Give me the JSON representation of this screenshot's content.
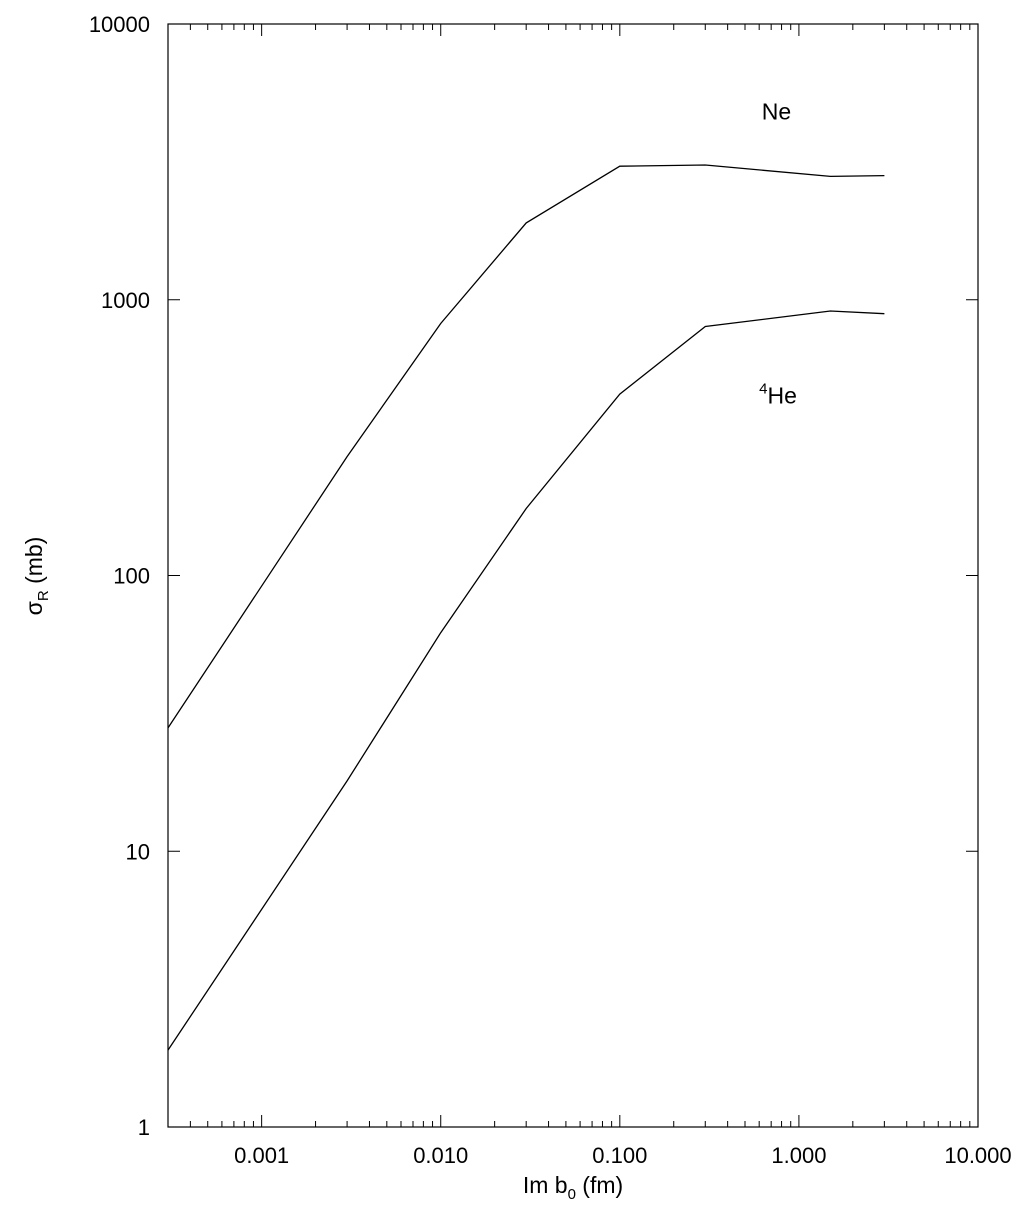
{
  "chart_data": {
    "type": "line",
    "x_scale": "log",
    "y_scale": "log",
    "xlim": [
      0.0003,
      10
    ],
    "ylim": [
      1,
      10000
    ],
    "xlabel": {
      "main": "Im b",
      "sub": "0",
      "unit": " (fm)"
    },
    "ylabel": {
      "main": "σ",
      "sub": "R",
      "unit": " (mb)"
    },
    "x_ticks": [
      {
        "value": 0.001,
        "label": "0.001"
      },
      {
        "value": 0.01,
        "label": "0.010"
      },
      {
        "value": 0.1,
        "label": "0.100"
      },
      {
        "value": 1,
        "label": "1.000"
      },
      {
        "value": 10,
        "label": "10.000"
      }
    ],
    "y_ticks": [
      {
        "value": 1,
        "label": "1"
      },
      {
        "value": 10,
        "label": "10"
      },
      {
        "value": 100,
        "label": "100"
      },
      {
        "value": 1000,
        "label": "1000"
      },
      {
        "value": 10000,
        "label": "10000"
      }
    ],
    "grid": false,
    "series": [
      {
        "name": "Ne",
        "label_sup": "",
        "label_main": "Ne",
        "label_at": {
          "x": 0.62,
          "y": 4500
        },
        "points": [
          {
            "x": 0.0003,
            "y": 28
          },
          {
            "x": 0.003,
            "y": 270
          },
          {
            "x": 0.01,
            "y": 820
          },
          {
            "x": 0.03,
            "y": 1900
          },
          {
            "x": 0.1,
            "y": 3050
          },
          {
            "x": 0.3,
            "y": 3080
          },
          {
            "x": 1.5,
            "y": 2800
          },
          {
            "x": 3.0,
            "y": 2820
          }
        ]
      },
      {
        "name": "4He",
        "label_sup": "4",
        "label_main": "He",
        "label_at": {
          "x": 0.6,
          "y": 420
        },
        "points": [
          {
            "x": 0.0003,
            "y": 1.9
          },
          {
            "x": 0.003,
            "y": 18
          },
          {
            "x": 0.01,
            "y": 62
          },
          {
            "x": 0.03,
            "y": 175
          },
          {
            "x": 0.1,
            "y": 455
          },
          {
            "x": 0.3,
            "y": 800
          },
          {
            "x": 1.5,
            "y": 910
          },
          {
            "x": 3.0,
            "y": 890
          }
        ]
      }
    ],
    "line_color": "#000000"
  }
}
